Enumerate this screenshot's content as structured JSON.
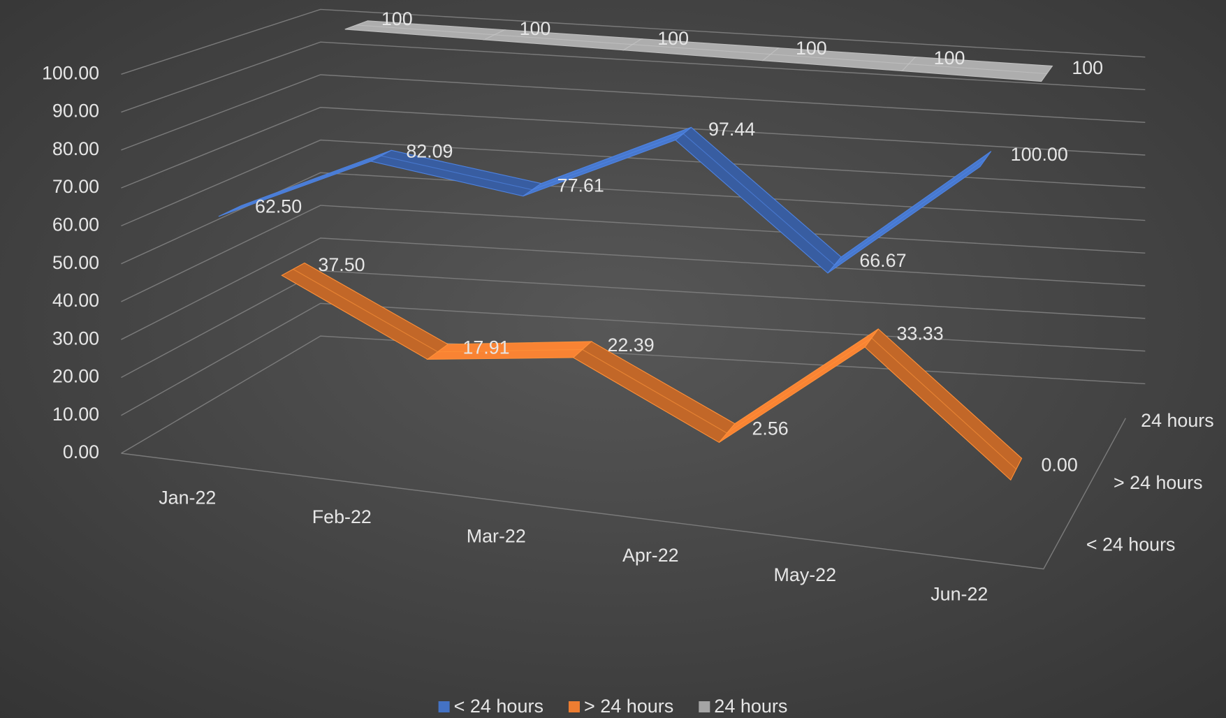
{
  "chart_data": {
    "type": "line3d",
    "categories": [
      "Jan-22",
      "Feb-22",
      "Mar-22",
      "Apr-22",
      "May-22",
      "Jun-22"
    ],
    "series": [
      {
        "name": "< 24 hours",
        "color": "#4472c4",
        "values": [
          62.5,
          82.09,
          77.61,
          97.44,
          66.67,
          100
        ],
        "value_labels": [
          "62.50",
          "82.09",
          "77.61",
          "97.44",
          "66.67",
          "100.00"
        ]
      },
      {
        "name": "> 24 hours",
        "color": "#ed7d31",
        "values": [
          37.5,
          17.91,
          22.39,
          2.56,
          33.33,
          0
        ],
        "value_labels": [
          "37.50",
          "17.91",
          "22.39",
          "2.56",
          "33.33",
          "0.00"
        ]
      },
      {
        "name": "24 hours",
        "color": "#a5a5a5",
        "values": [
          100,
          100,
          100,
          100,
          100,
          100
        ]
      }
    ],
    "ylim": [
      0,
      100
    ],
    "yticks": [
      {
        "value": 0,
        "label": "0.00"
      },
      {
        "value": 10,
        "label": "10.00"
      },
      {
        "value": 20,
        "label": "20.00"
      },
      {
        "value": 30,
        "label": "30.00"
      },
      {
        "value": 40,
        "label": "40.00"
      },
      {
        "value": 50,
        "label": "50.00"
      },
      {
        "value": 60,
        "label": "60.00"
      },
      {
        "value": 70,
        "label": "70.00"
      },
      {
        "value": 80,
        "label": "80.00"
      },
      {
        "value": 90,
        "label": "90.00"
      },
      {
        "value": 100,
        "label": "100.00"
      }
    ],
    "grid": true,
    "legend": "bottom"
  }
}
